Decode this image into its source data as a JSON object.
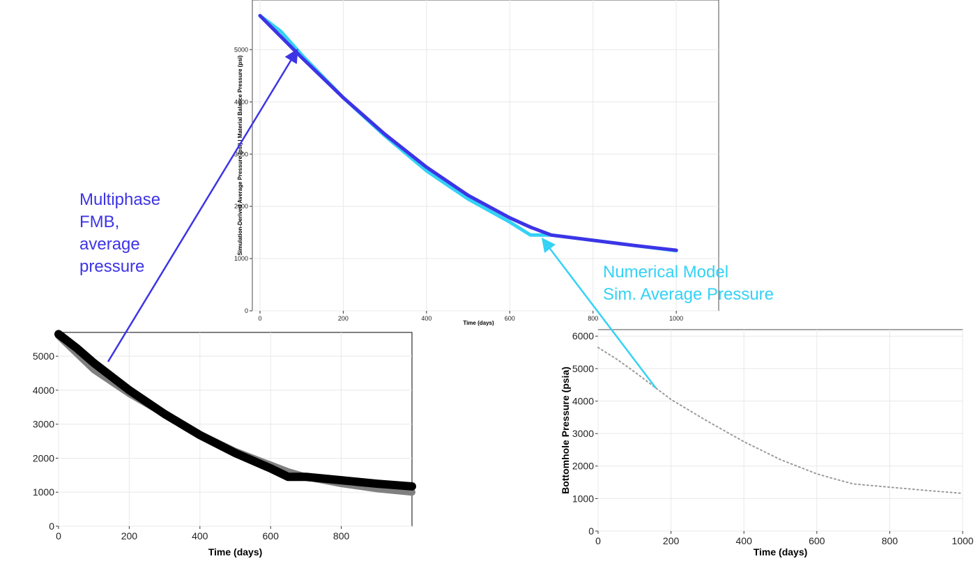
{
  "colors": {
    "fmb_blue": "#3d34e6",
    "sim_cyan": "#34d2f5",
    "black_series": "#000000",
    "gray_series": "#808080",
    "dotted_series": "#9a9a9a",
    "grid": "#e8e8e8"
  },
  "annotations": {
    "fmb": "Multiphase\nFMB,\naverage\npressure",
    "sim": "Numerical Model\nSim. Average Pressure"
  },
  "chart_data": [
    {
      "type": "line",
      "title": "",
      "xlabel": "Time (days)",
      "ylabel": "Simulation-Derived Average Pressure (psi) | Material Balance Pressure (psi)",
      "xlim": [
        0,
        1050
      ],
      "ylim": [
        0,
        5950
      ],
      "x_ticks": [
        "0",
        "200",
        "400",
        "600",
        "800",
        "1000"
      ],
      "y_ticks": [
        "0",
        "1000",
        "2000",
        "3000",
        "4000",
        "5000"
      ],
      "grid": true,
      "series": [
        {
          "color": "#34d2f5",
          "x": [
            0,
            50,
            100,
            200,
            300,
            400,
            500,
            600,
            650,
            700,
            800,
            900,
            1000
          ],
          "y": [
            5650,
            5350,
            4900,
            4080,
            3350,
            2680,
            2140,
            1700,
            1450,
            1450,
            1350,
            1250,
            1150
          ]
        },
        {
          "color": "#3d34e6",
          "x": [
            0,
            50,
            100,
            200,
            300,
            400,
            500,
            600,
            650,
            700,
            800,
            900,
            1000
          ],
          "y": [
            5650,
            5250,
            4850,
            4080,
            3380,
            2750,
            2210,
            1780,
            1600,
            1450,
            1350,
            1250,
            1160
          ]
        }
      ]
    },
    {
      "type": "line",
      "title": "",
      "xlabel": "Time (days)",
      "ylabel": "",
      "xlim": [
        0,
        1000
      ],
      "ylim": [
        0,
        5700
      ],
      "x_ticks": [
        "0",
        "200",
        "400",
        "600",
        "800"
      ],
      "y_ticks": [
        "0",
        "1000",
        "2000",
        "3000",
        "4000",
        "5000"
      ],
      "grid": true,
      "series": [
        {
          "color": "#808080",
          "x": [
            0,
            50,
            100,
            200,
            300,
            400,
            500,
            600,
            650,
            700,
            800,
            900,
            1000
          ],
          "y": [
            5600,
            5100,
            4600,
            3900,
            3300,
            2700,
            2200,
            1800,
            1600,
            1450,
            1250,
            1100,
            1000
          ]
        },
        {
          "color": "#000000",
          "x": [
            0,
            50,
            100,
            200,
            300,
            400,
            500,
            600,
            650,
            700,
            800,
            900,
            1000
          ],
          "y": [
            5650,
            5250,
            4800,
            4000,
            3300,
            2680,
            2150,
            1700,
            1450,
            1450,
            1350,
            1250,
            1170
          ]
        }
      ]
    },
    {
      "type": "line",
      "title": "",
      "xlabel": "Time (days)",
      "ylabel": "Bottomhole Pressure (psia)",
      "xlim": [
        0,
        1000
      ],
      "ylim": [
        0,
        6200
      ],
      "x_ticks": [
        "0",
        "200",
        "400",
        "600",
        "800",
        "1000"
      ],
      "y_ticks": [
        "0",
        "1000",
        "2000",
        "3000",
        "4000",
        "5000",
        "6000"
      ],
      "grid": true,
      "series": [
        {
          "color": "#9a9a9a",
          "style": "dotted",
          "x": [
            0,
            50,
            100,
            200,
            300,
            400,
            500,
            600,
            650,
            700,
            800,
            900,
            1000
          ],
          "y": [
            5650,
            5300,
            4900,
            4050,
            3380,
            2750,
            2200,
            1760,
            1600,
            1450,
            1350,
            1250,
            1160
          ]
        }
      ]
    }
  ]
}
